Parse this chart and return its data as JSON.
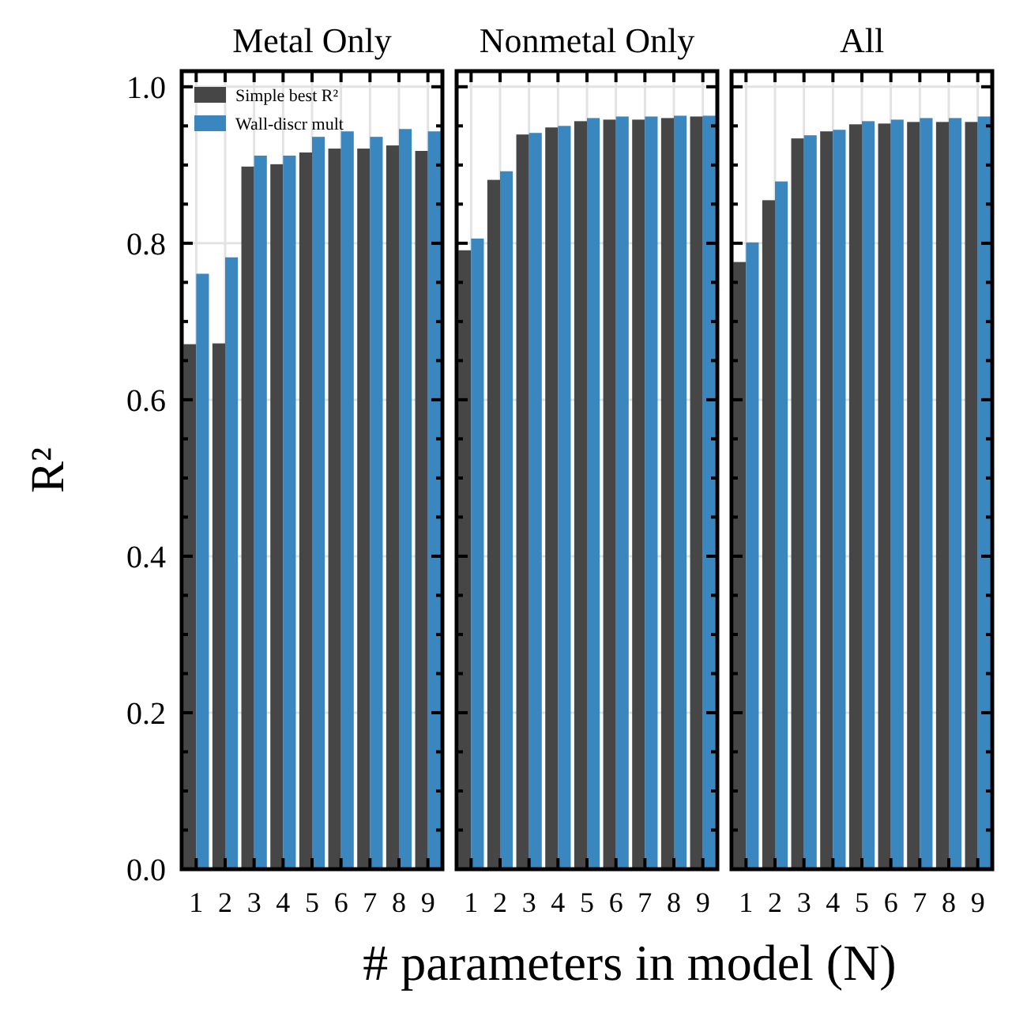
{
  "chart_data": [
    {
      "type": "bar",
      "title": "Metal Only",
      "ylabel": "R²",
      "categories": [
        "1",
        "2",
        "3",
        "4",
        "5",
        "6",
        "7",
        "8",
        "9"
      ],
      "series": [
        {
          "name": "Simple best R²",
          "color": "#464646",
          "values": [
            0.671,
            0.672,
            0.898,
            0.901,
            0.916,
            0.921,
            0.921,
            0.925,
            0.918
          ]
        },
        {
          "name": "Wall-discr mult",
          "color": "#3a87c0",
          "values": [
            0.761,
            0.782,
            0.912,
            0.912,
            0.936,
            0.943,
            0.936,
            0.946,
            0.943
          ]
        }
      ],
      "ylim": [
        0,
        1.02
      ],
      "yticks": [
        {
          "value": 0,
          "label": "0.0"
        },
        {
          "value": 0.05,
          "label": null
        },
        {
          "value": 0.1,
          "label": null
        },
        {
          "value": 0.15,
          "label": null
        },
        {
          "value": 0.2,
          "label": "0.2"
        },
        {
          "value": 0.25,
          "label": null
        },
        {
          "value": 0.3,
          "label": null
        },
        {
          "value": 0.35,
          "label": null
        },
        {
          "value": 0.4,
          "label": "0.4"
        },
        {
          "value": 0.45,
          "label": null
        },
        {
          "value": 0.5,
          "label": null
        },
        {
          "value": 0.55,
          "label": null
        },
        {
          "value": 0.6,
          "label": "0.6"
        },
        {
          "value": 0.65,
          "label": null
        },
        {
          "value": 0.7,
          "label": null
        },
        {
          "value": 0.75,
          "label": null
        },
        {
          "value": 0.8,
          "label": "0.8"
        },
        {
          "value": 0.85,
          "label": null
        },
        {
          "value": 0.9,
          "label": null
        },
        {
          "value": 0.95,
          "label": null
        },
        {
          "value": 1,
          "label": "1.0"
        }
      ],
      "grid": true,
      "legend": "top left"
    },
    {
      "type": "bar",
      "title": "Nonmetal Only",
      "xlabel": "# parameters in model (N)",
      "categories": [
        "1",
        "2",
        "3",
        "4",
        "5",
        "6",
        "7",
        "8",
        "9"
      ],
      "series": [
        {
          "color": "#464646",
          "values": [
            0.791,
            0.881,
            0.939,
            0.948,
            0.956,
            0.958,
            0.958,
            0.96,
            0.962
          ]
        },
        {
          "color": "#3a87c0",
          "values": [
            0.806,
            0.892,
            0.941,
            0.95,
            0.96,
            0.962,
            0.962,
            0.963,
            0.963
          ]
        }
      ],
      "ylim": [
        0,
        1.02
      ],
      "yticks": [
        {
          "value": 0,
          "label": null
        },
        {
          "value": 0.05,
          "label": null
        },
        {
          "value": 0.1,
          "label": null
        },
        {
          "value": 0.15,
          "label": null
        },
        {
          "value": 0.2,
          "label": null
        },
        {
          "value": 0.25,
          "label": null
        },
        {
          "value": 0.3,
          "label": null
        },
        {
          "value": 0.35,
          "label": null
        },
        {
          "value": 0.4,
          "label": null
        },
        {
          "value": 0.45,
          "label": null
        },
        {
          "value": 0.5,
          "label": null
        },
        {
          "value": 0.55,
          "label": null
        },
        {
          "value": 0.6,
          "label": null
        },
        {
          "value": 0.65,
          "label": null
        },
        {
          "value": 0.7,
          "label": null
        },
        {
          "value": 0.75,
          "label": null
        },
        {
          "value": 0.8,
          "label": null
        },
        {
          "value": 0.85,
          "label": null
        },
        {
          "value": 0.9,
          "label": null
        },
        {
          "value": 0.95,
          "label": null
        },
        {
          "value": 1,
          "label": null
        }
      ],
      "grid": true,
      "tick_labels": "x"
    },
    {
      "type": "bar",
      "title": "All",
      "categories": [
        "1",
        "2",
        "3",
        "4",
        "5",
        "6",
        "7",
        "8",
        "9"
      ],
      "series": [
        {
          "color": "#464646",
          "values": [
            0.776,
            0.855,
            0.934,
            0.943,
            0.952,
            0.953,
            0.955,
            0.955,
            0.955
          ]
        },
        {
          "color": "#3a87c0",
          "values": [
            0.801,
            0.879,
            0.938,
            0.945,
            0.956,
            0.958,
            0.96,
            0.96,
            0.962
          ]
        }
      ],
      "ylim": [
        0,
        1.02
      ],
      "yticks": [
        {
          "value": 0,
          "label": null
        },
        {
          "value": 0.05,
          "label": null
        },
        {
          "value": 0.1,
          "label": null
        },
        {
          "value": 0.15,
          "label": null
        },
        {
          "value": 0.2,
          "label": null
        },
        {
          "value": 0.25,
          "label": null
        },
        {
          "value": 0.3,
          "label": null
        },
        {
          "value": 0.35,
          "label": null
        },
        {
          "value": 0.4,
          "label": null
        },
        {
          "value": 0.45,
          "label": null
        },
        {
          "value": 0.5,
          "label": null
        },
        {
          "value": 0.55,
          "label": null
        },
        {
          "value": 0.6,
          "label": null
        },
        {
          "value": 0.65,
          "label": null
        },
        {
          "value": 0.7,
          "label": null
        },
        {
          "value": 0.75,
          "label": null
        },
        {
          "value": 0.8,
          "label": null
        },
        {
          "value": 0.85,
          "label": null
        },
        {
          "value": 0.9,
          "label": null
        },
        {
          "value": 0.95,
          "label": null
        },
        {
          "value": 1,
          "label": null
        }
      ],
      "grid": true,
      "tick_labels": "x"
    }
  ]
}
